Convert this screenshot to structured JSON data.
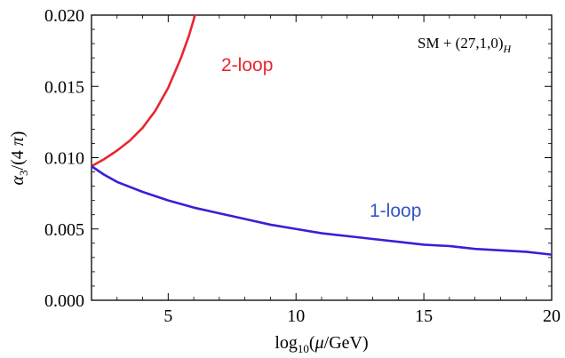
{
  "chart_data": {
    "type": "line",
    "title": "",
    "xlabel": "log10(μ/GeV)",
    "ylabel": "α3/(4 π)",
    "xlim": [
      2,
      20
    ],
    "ylim": [
      0,
      0.02
    ],
    "xticks": [
      5,
      10,
      15,
      20
    ],
    "xtick_labels": [
      "5",
      "10",
      "15",
      "20"
    ],
    "yticks": [
      0,
      0.005,
      0.01,
      0.015,
      0.02
    ],
    "ytick_labels": [
      "0.000",
      "0.005",
      "0.010",
      "0.015",
      "0.020"
    ],
    "grid": false,
    "annotation": "SM + (27,1,0)H",
    "series": [
      {
        "name": "2-loop",
        "color": "#e8262d",
        "x": [
          2.0,
          2.5,
          3.0,
          3.5,
          4.0,
          4.5,
          5.0,
          5.5,
          5.8,
          6.0,
          6.2,
          6.4
        ],
        "y": [
          0.0094,
          0.0099,
          0.0105,
          0.0112,
          0.0121,
          0.0133,
          0.0149,
          0.017,
          0.0185,
          0.0197,
          0.021,
          0.0222
        ]
      },
      {
        "name": "1-loop",
        "color": "#3a1fd6",
        "x": [
          2,
          2.5,
          3,
          4,
          5,
          6,
          7,
          8,
          9,
          10,
          11,
          12,
          13,
          14,
          15,
          16,
          17,
          18,
          19,
          20
        ],
        "y": [
          0.0094,
          0.0088,
          0.0083,
          0.0076,
          0.007,
          0.0065,
          0.0061,
          0.0057,
          0.0053,
          0.005,
          0.0047,
          0.0045,
          0.0043,
          0.0041,
          0.0039,
          0.0038,
          0.0036,
          0.0035,
          0.0034,
          0.0032
        ]
      }
    ]
  }
}
